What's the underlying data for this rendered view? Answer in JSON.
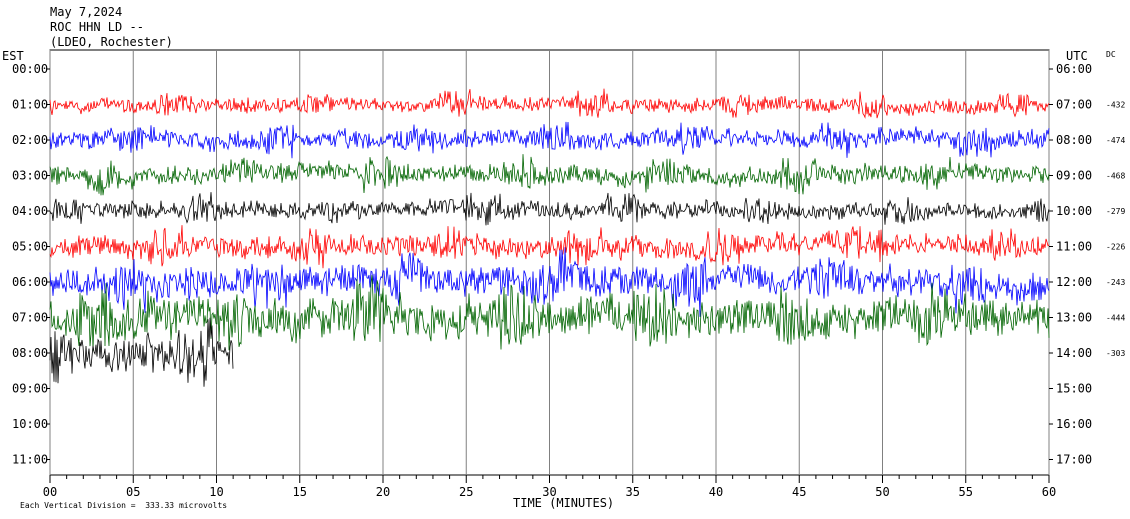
{
  "header": {
    "date": "May 7,2024",
    "station": "ROC HHN LD --",
    "network": "(LDEO, Rochester)"
  },
  "chart_data": {
    "type": "line",
    "title": "May 7,2024",
    "xlabel": "TIME (MINUTES)",
    "x_ticks": [
      "00",
      "05",
      "10",
      "15",
      "20",
      "25",
      "30",
      "35",
      "40",
      "45",
      "50",
      "55",
      "60"
    ],
    "xlim": [
      0,
      60
    ],
    "left_axis_label": "EST",
    "right_axis_label": "UTC",
    "dc_label": "DC",
    "est_hours": [
      "00:00",
      "01:00",
      "02:00",
      "03:00",
      "04:00",
      "05:00",
      "06:00",
      "07:00",
      "08:00",
      "09:00",
      "10:00",
      "11:00"
    ],
    "utc_hours": [
      "06:00",
      "07:00",
      "08:00",
      "09:00",
      "10:00",
      "11:00",
      "12:00",
      "13:00",
      "14:00",
      "15:00",
      "16:00",
      "17:00"
    ],
    "series": [
      {
        "hour_index": 1,
        "color": "#ff0000",
        "dc": "-432",
        "amplitude": 0.22,
        "end_minute": 60
      },
      {
        "hour_index": 2,
        "color": "#0000ff",
        "dc": "-474",
        "amplitude": 0.28,
        "end_minute": 60
      },
      {
        "hour_index": 3,
        "color": "#006400",
        "dc": "-468",
        "amplitude": 0.28,
        "end_minute": 60
      },
      {
        "hour_index": 4,
        "color": "#000000",
        "dc": "-279",
        "amplitude": 0.25,
        "end_minute": 60
      },
      {
        "hour_index": 5,
        "color": "#ff0000",
        "dc": "-226",
        "amplitude": 0.32,
        "end_minute": 60
      },
      {
        "hour_index": 6,
        "color": "#0000ff",
        "dc": "-243",
        "amplitude": 0.45,
        "end_minute": 60
      },
      {
        "hour_index": 7,
        "color": "#006400",
        "dc": "-444",
        "amplitude": 0.6,
        "end_minute": 60
      },
      {
        "hour_index": 8,
        "color": "#000000",
        "dc": "-303",
        "amplitude": 0.55,
        "end_minute": 11
      }
    ],
    "grid": true
  },
  "footer": {
    "scale_note": "Each Vertical Division =  333.33 microvolts"
  }
}
